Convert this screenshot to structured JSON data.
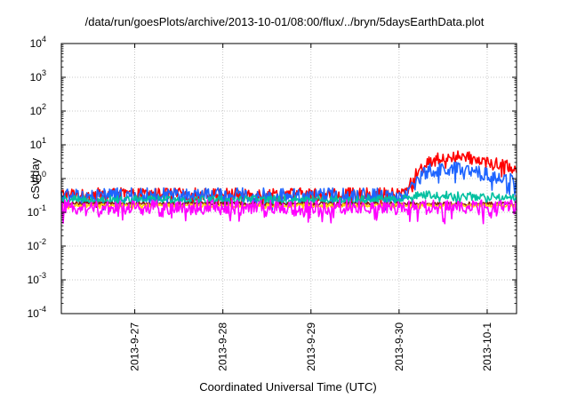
{
  "chart_data": {
    "type": "line",
    "title": "/data/run/goesPlots/archive/2013-10-01/08:00/flux/../bryn/5daysEarthData.plot",
    "xlabel": "Coordinated Universal Time (UTC)",
    "ylabel": "cSv/day",
    "yscale": "log",
    "ylim": [
      0.0001,
      10000
    ],
    "xlim": [
      "2013-09-26T04:00",
      "2013-10-01T08:00"
    ],
    "grid": true,
    "x_ticks": [
      "2013-9-27",
      "2013-9-28",
      "2013-9-29",
      "2013-9-30",
      "2013-10-1"
    ],
    "y_ticks": [
      {
        "base": "10",
        "exp": "-4"
      },
      {
        "base": "10",
        "exp": "-3"
      },
      {
        "base": "10",
        "exp": "-2"
      },
      {
        "base": "10",
        "exp": "-1"
      },
      {
        "base": "10",
        "exp": "0"
      },
      {
        "base": "10",
        "exp": "1"
      },
      {
        "base": "10",
        "exp": "2"
      },
      {
        "base": "10",
        "exp": "3"
      },
      {
        "base": "10",
        "exp": "4"
      }
    ],
    "series": [
      {
        "color": "#ff0000",
        "noise": 0.18,
        "points": [
          [
            "2013-09-26T04:00",
            0.35
          ],
          [
            "2013-09-30T00:00",
            0.35
          ],
          [
            "2013-09-30T02:00",
            0.42
          ],
          [
            "2013-09-30T05:00",
            1.6
          ],
          [
            "2013-09-30T09:00",
            3.6
          ],
          [
            "2013-09-30T14:00",
            4.5
          ],
          [
            "2013-09-30T18:00",
            4.3
          ],
          [
            "2013-10-01T00:00",
            3.1
          ],
          [
            "2013-10-01T08:00",
            2.0
          ]
        ]
      },
      {
        "color": "#1e64ff",
        "noise": 0.22,
        "points": [
          [
            "2013-09-26T04:00",
            0.32
          ],
          [
            "2013-09-30T00:00",
            0.32
          ],
          [
            "2013-09-30T02:00",
            0.38
          ],
          [
            "2013-09-30T05:00",
            1.0
          ],
          [
            "2013-09-30T09:00",
            1.9
          ],
          [
            "2013-09-30T14:00",
            2.0
          ],
          [
            "2013-09-30T18:00",
            1.7
          ],
          [
            "2013-10-01T00:00",
            1.25
          ],
          [
            "2013-10-01T08:00",
            0.85
          ]
        ]
      },
      {
        "color": "#00c0a0",
        "noise": 0.12,
        "points": [
          [
            "2013-09-26T04:00",
            0.24
          ],
          [
            "2013-09-30T00:00",
            0.24
          ],
          [
            "2013-09-30T04:00",
            0.3
          ],
          [
            "2013-09-30T08:00",
            0.33
          ],
          [
            "2013-10-01T08:00",
            0.28
          ]
        ]
      },
      {
        "color": "#8b1a1a",
        "noise": 0.05,
        "points": [
          [
            "2013-09-26T04:00",
            0.18
          ],
          [
            "2013-10-01T08:00",
            0.18
          ]
        ]
      },
      {
        "color": "#ffd700",
        "noise": 0.05,
        "points": [
          [
            "2013-09-26T04:00",
            0.16
          ],
          [
            "2013-10-01T08:00",
            0.16
          ]
        ]
      },
      {
        "color": "#ff00ff",
        "noise": 0.22,
        "points": [
          [
            "2013-09-26T04:00",
            0.14
          ],
          [
            "2013-10-01T08:00",
            0.14
          ]
        ]
      }
    ]
  }
}
